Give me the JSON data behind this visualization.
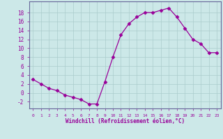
{
  "x": [
    0,
    1,
    2,
    3,
    4,
    5,
    6,
    7,
    8,
    9,
    10,
    11,
    12,
    13,
    14,
    15,
    16,
    17,
    18,
    19,
    20,
    21,
    22,
    23
  ],
  "y": [
    3.0,
    2.0,
    1.0,
    0.5,
    -0.5,
    -1.0,
    -1.5,
    -2.5,
    -2.5,
    2.5,
    8.0,
    13.0,
    15.5,
    17.0,
    18.0,
    18.0,
    18.5,
    19.0,
    17.0,
    14.5,
    12.0,
    11.0,
    9.0,
    9.0
  ],
  "line_color": "#990099",
  "marker": "D",
  "marker_size": 2.5,
  "bg_color": "#cce8e8",
  "grid_color": "#aacccc",
  "xlabel": "Windchill (Refroidissement éolien,°C)",
  "xlabel_color": "#990099",
  "tick_color": "#990099",
  "ylabel_ticks": [
    -2,
    0,
    2,
    4,
    6,
    8,
    10,
    12,
    14,
    16,
    18
  ],
  "xlim": [
    -0.5,
    23.5
  ],
  "ylim": [
    -3.5,
    20.5
  ],
  "spine_color": "#666699"
}
